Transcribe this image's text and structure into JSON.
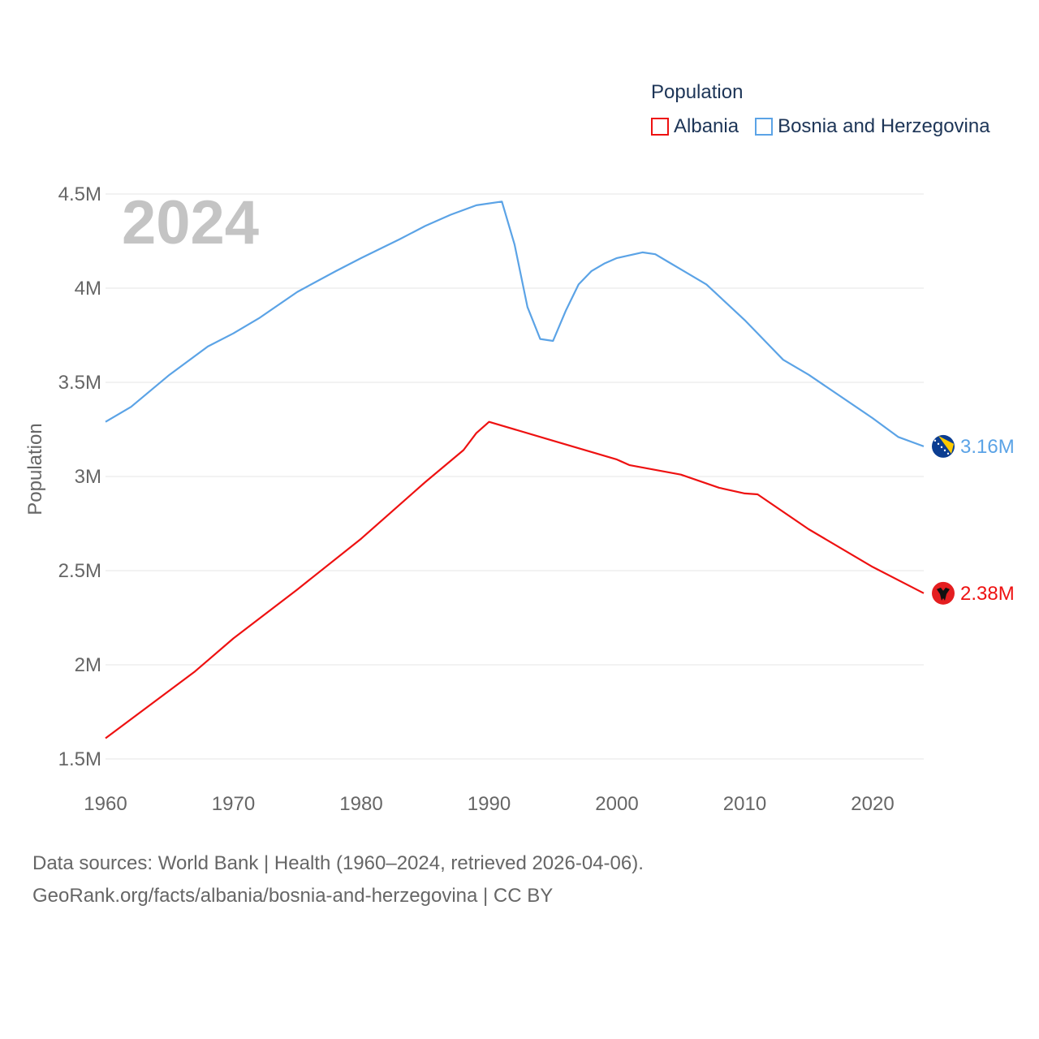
{
  "legend": {
    "title": "Population",
    "items": [
      {
        "name": "Albania",
        "color": "#ee1111"
      },
      {
        "name": "Bosnia and Herzegovina",
        "color": "#5ba3e6"
      }
    ]
  },
  "source": {
    "line1": "Data sources: World Bank | Health (1960–2024, retrieved 2026-04-06).",
    "line2": "GeoRank.org/facts/albania/bosnia-and-herzegovina | CC BY"
  },
  "chart_data": {
    "type": "line",
    "title": "Population",
    "year_label": "2024",
    "xlabel": "",
    "ylabel": "Population",
    "xlim": [
      1960,
      2024
    ],
    "ylim": [
      1500000,
      4600000
    ],
    "x_ticks": [
      1960,
      1970,
      1980,
      1990,
      2000,
      2010,
      2020
    ],
    "y_ticks": [
      {
        "value": 1500000,
        "label": "1.5M"
      },
      {
        "value": 2000000,
        "label": "2M"
      },
      {
        "value": 2500000,
        "label": "2.5M"
      },
      {
        "value": 3000000,
        "label": "3M"
      },
      {
        "value": 3500000,
        "label": "3.5M"
      },
      {
        "value": 4000000,
        "label": "4M"
      },
      {
        "value": 4500000,
        "label": "4.5M"
      }
    ],
    "series": [
      {
        "name": "Albania",
        "color": "#ee1111",
        "end_label": "2.38M",
        "flag": "albania-flag",
        "points": [
          [
            1960,
            1610000
          ],
          [
            1967,
            1965000
          ],
          [
            1970,
            2140000
          ],
          [
            1975,
            2400000
          ],
          [
            1980,
            2670000
          ],
          [
            1985,
            2970000
          ],
          [
            1988,
            3140000
          ],
          [
            1989,
            3230000
          ],
          [
            1990,
            3290000
          ],
          [
            1995,
            3190000
          ],
          [
            2000,
            3090000
          ],
          [
            2001,
            3060000
          ],
          [
            2005,
            3010000
          ],
          [
            2008,
            2940000
          ],
          [
            2010,
            2910000
          ],
          [
            2011,
            2905000
          ],
          [
            2015,
            2720000
          ],
          [
            2020,
            2520000
          ],
          [
            2024,
            2380000
          ]
        ]
      },
      {
        "name": "Bosnia and Herzegovina",
        "color": "#5ba3e6",
        "end_label": "3.16M",
        "flag": "bosnia-flag",
        "points": [
          [
            1960,
            3290000
          ],
          [
            1962,
            3370000
          ],
          [
            1965,
            3540000
          ],
          [
            1968,
            3690000
          ],
          [
            1970,
            3760000
          ],
          [
            1972,
            3840000
          ],
          [
            1975,
            3980000
          ],
          [
            1978,
            4090000
          ],
          [
            1980,
            4160000
          ],
          [
            1983,
            4260000
          ],
          [
            1985,
            4330000
          ],
          [
            1987,
            4390000
          ],
          [
            1989,
            4440000
          ],
          [
            1991,
            4460000
          ],
          [
            1992,
            4230000
          ],
          [
            1993,
            3900000
          ],
          [
            1994,
            3730000
          ],
          [
            1995,
            3720000
          ],
          [
            1996,
            3880000
          ],
          [
            1997,
            4020000
          ],
          [
            1998,
            4090000
          ],
          [
            1999,
            4130000
          ],
          [
            2000,
            4160000
          ],
          [
            2002,
            4190000
          ],
          [
            2003,
            4180000
          ],
          [
            2004,
            4140000
          ],
          [
            2005,
            4100000
          ],
          [
            2007,
            4020000
          ],
          [
            2010,
            3830000
          ],
          [
            2012,
            3690000
          ],
          [
            2013,
            3620000
          ],
          [
            2015,
            3540000
          ],
          [
            2020,
            3310000
          ],
          [
            2021,
            3260000
          ],
          [
            2022,
            3210000
          ],
          [
            2024,
            3160000
          ]
        ]
      }
    ]
  }
}
